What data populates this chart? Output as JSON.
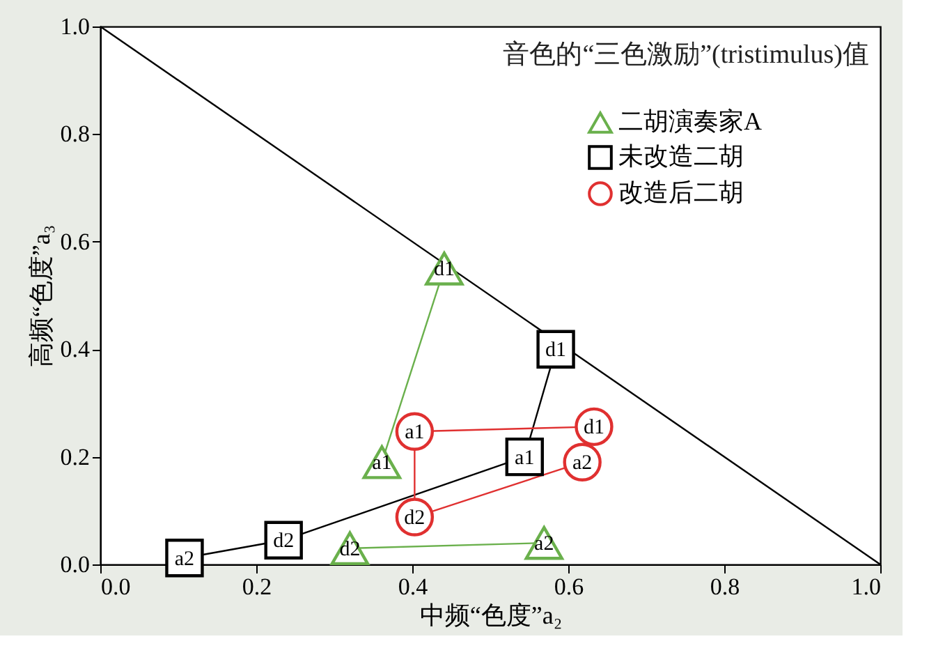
{
  "chart_data": {
    "type": "line",
    "title": "音色的“三色激励”(tristimulus)值",
    "xlabel": "中频“色度”a₂",
    "ylabel": "高频“色度”a₃",
    "xlim": [
      0,
      1
    ],
    "ylim": [
      0,
      1
    ],
    "xticks": [
      {
        "value": 0,
        "label": "0.0"
      },
      0.2,
      0.4,
      0.6,
      0.8,
      {
        "value": 1,
        "label": "1.0"
      }
    ],
    "yticks": [
      {
        "value": 0,
        "label": "0.0"
      },
      0.2,
      0.4,
      0.6,
      0.8,
      {
        "value": 1,
        "label": "1.0"
      }
    ],
    "grid": false,
    "legend": "top right",
    "line_style": "solid",
    "series": [
      {
        "marker": "none",
        "color": "#000000",
        "x": [
          0,
          1
        ],
        "values": [
          1,
          0
        ]
      },
      {
        "name": "二胡演奏家A",
        "marker": "triangle",
        "color": "#6ab04c",
        "x": [
          0.441,
          0.361,
          null,
          0.32,
          0.569
        ],
        "values": [
          0.55,
          0.19,
          null,
          0.03,
          0.04
        ]
      },
      {
        "name": "未改造二胡",
        "marker": "square",
        "color": "#000000",
        "x": [
          0.584,
          0.544,
          0.235,
          0.108
        ],
        "values": [
          0.4,
          0.2,
          0.045,
          0.012
        ]
      },
      {
        "name": "改造后二胡",
        "marker": "circle",
        "color": "#e03030",
        "x": [
          0.633,
          0.403,
          0.403,
          0.618
        ],
        "values": [
          0.256,
          0.247,
          0.088,
          0.19
        ]
      }
    ],
    "annotations": [
      {
        "text": "d1",
        "x": 0.441,
        "y": 0.55
      },
      {
        "text": "a1",
        "x": 0.361,
        "y": 0.19
      },
      {
        "text": "d2",
        "x": 0.32,
        "y": 0.03
      },
      {
        "text": "a2",
        "x": 0.569,
        "y": 0.04
      },
      {
        "text": "d1",
        "x": 0.584,
        "y": 0.4
      },
      {
        "text": "a1",
        "x": 0.544,
        "y": 0.2
      },
      {
        "text": "d2",
        "x": 0.235,
        "y": 0.045
      },
      {
        "text": "a2",
        "x": 0.108,
        "y": 0.012
      },
      {
        "text": "d1",
        "x": 0.633,
        "y": 0.256
      },
      {
        "text": "a1",
        "x": 0.403,
        "y": 0.247
      },
      {
        "text": "d2",
        "x": 0.403,
        "y": 0.088
      },
      {
        "text": "a2",
        "x": 0.618,
        "y": 0.19
      }
    ]
  }
}
